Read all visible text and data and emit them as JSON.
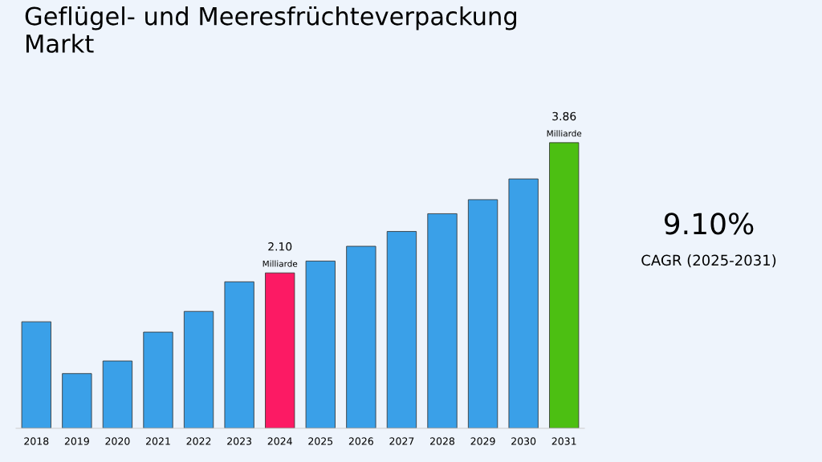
{
  "chart_data": {
    "type": "bar",
    "title": "Geflügel- und Meeresfrüchteverpackung\nMarkt",
    "categories": [
      "2018",
      "2019",
      "2020",
      "2021",
      "2022",
      "2023",
      "2024",
      "2025",
      "2026",
      "2027",
      "2028",
      "2029",
      "2030",
      "2031"
    ],
    "values": [
      1.44,
      0.74,
      0.91,
      1.3,
      1.58,
      1.98,
      2.1,
      2.26,
      2.46,
      2.66,
      2.9,
      3.09,
      3.37,
      3.86
    ],
    "colors": [
      "#3aa0e8",
      "#3aa0e8",
      "#3aa0e8",
      "#3aa0e8",
      "#3aa0e8",
      "#3aa0e8",
      "#fc1a64",
      "#3aa0e8",
      "#3aa0e8",
      "#3aa0e8",
      "#3aa0e8",
      "#3aa0e8",
      "#3aa0e8",
      "#4cbf12"
    ],
    "value_labels": [
      null,
      null,
      null,
      null,
      null,
      null,
      "2.10\nMilliarde",
      null,
      null,
      null,
      null,
      null,
      null,
      "3.86\nMilliarde"
    ],
    "tick_labels": "x",
    "grid": false,
    "legend": false,
    "annotations": [
      "9.10%",
      "CAGR (2025-2031)"
    ]
  }
}
